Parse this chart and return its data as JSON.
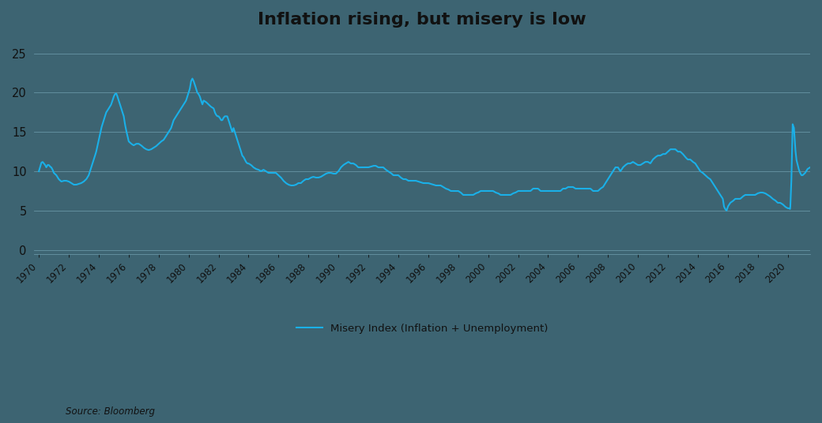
{
  "title": "Inflation rising, but misery is low",
  "line_color": "#1ab0e8",
  "background_color": "#3d6472",
  "grid_color": "#7aaabb",
  "text_color": "#111111",
  "source_text": "Source: Bloomberg",
  "legend_label": "Misery Index (Inflation + Unemployment)",
  "yticks": [
    0,
    5,
    10,
    15,
    20,
    25
  ],
  "ylim": [
    -0.5,
    27
  ],
  "xlim_left": 1969.7,
  "xlim_right": 2021.5,
  "points": [
    [
      1970.0,
      10.0
    ],
    [
      1970.08,
      10.5
    ],
    [
      1970.17,
      11.1
    ],
    [
      1970.25,
      11.2
    ],
    [
      1970.33,
      11.0
    ],
    [
      1970.42,
      10.8
    ],
    [
      1970.5,
      10.5
    ],
    [
      1970.58,
      10.8
    ],
    [
      1970.67,
      10.8
    ],
    [
      1970.75,
      10.6
    ],
    [
      1970.83,
      10.5
    ],
    [
      1970.92,
      10.2
    ],
    [
      1971.0,
      9.8
    ],
    [
      1971.17,
      9.5
    ],
    [
      1971.33,
      9.0
    ],
    [
      1971.5,
      8.7
    ],
    [
      1971.67,
      8.8
    ],
    [
      1971.83,
      8.8
    ],
    [
      1972.0,
      8.7
    ],
    [
      1972.17,
      8.5
    ],
    [
      1972.33,
      8.3
    ],
    [
      1972.5,
      8.3
    ],
    [
      1972.67,
      8.4
    ],
    [
      1972.83,
      8.5
    ],
    [
      1973.0,
      8.7
    ],
    [
      1973.17,
      9.0
    ],
    [
      1973.33,
      9.5
    ],
    [
      1973.5,
      10.5
    ],
    [
      1973.67,
      11.5
    ],
    [
      1973.83,
      12.5
    ],
    [
      1974.0,
      14.0
    ],
    [
      1974.17,
      15.5
    ],
    [
      1974.33,
      16.5
    ],
    [
      1974.5,
      17.5
    ],
    [
      1974.67,
      18.0
    ],
    [
      1974.83,
      18.5
    ],
    [
      1975.0,
      19.5
    ],
    [
      1975.08,
      19.8
    ],
    [
      1975.17,
      19.9
    ],
    [
      1975.25,
      19.5
    ],
    [
      1975.33,
      19.0
    ],
    [
      1975.42,
      18.5
    ],
    [
      1975.5,
      18.0
    ],
    [
      1975.58,
      17.5
    ],
    [
      1975.67,
      17.0
    ],
    [
      1975.75,
      16.0
    ],
    [
      1975.83,
      15.2
    ],
    [
      1975.92,
      14.5
    ],
    [
      1976.0,
      13.8
    ],
    [
      1976.17,
      13.5
    ],
    [
      1976.33,
      13.3
    ],
    [
      1976.5,
      13.5
    ],
    [
      1976.67,
      13.5
    ],
    [
      1976.83,
      13.3
    ],
    [
      1977.0,
      13.0
    ],
    [
      1977.17,
      12.8
    ],
    [
      1977.33,
      12.7
    ],
    [
      1977.5,
      12.8
    ],
    [
      1977.67,
      13.0
    ],
    [
      1977.83,
      13.2
    ],
    [
      1978.0,
      13.5
    ],
    [
      1978.17,
      13.8
    ],
    [
      1978.33,
      14.0
    ],
    [
      1978.5,
      14.5
    ],
    [
      1978.67,
      15.0
    ],
    [
      1978.83,
      15.5
    ],
    [
      1979.0,
      16.5
    ],
    [
      1979.17,
      17.0
    ],
    [
      1979.33,
      17.5
    ],
    [
      1979.5,
      18.0
    ],
    [
      1979.67,
      18.5
    ],
    [
      1979.83,
      19.0
    ],
    [
      1980.0,
      20.0
    ],
    [
      1980.08,
      20.5
    ],
    [
      1980.17,
      21.5
    ],
    [
      1980.25,
      21.8
    ],
    [
      1980.33,
      21.5
    ],
    [
      1980.42,
      21.0
    ],
    [
      1980.5,
      20.5
    ],
    [
      1980.58,
      20.0
    ],
    [
      1980.67,
      19.8
    ],
    [
      1980.75,
      19.5
    ],
    [
      1980.83,
      19.0
    ],
    [
      1980.92,
      18.5
    ],
    [
      1981.0,
      19.0
    ],
    [
      1981.17,
      18.8
    ],
    [
      1981.33,
      18.5
    ],
    [
      1981.5,
      18.2
    ],
    [
      1981.67,
      18.0
    ],
    [
      1981.75,
      17.5
    ],
    [
      1981.83,
      17.2
    ],
    [
      1981.92,
      17.0
    ],
    [
      1982.0,
      17.0
    ],
    [
      1982.08,
      16.8
    ],
    [
      1982.17,
      16.5
    ],
    [
      1982.25,
      16.5
    ],
    [
      1982.33,
      16.8
    ],
    [
      1982.42,
      17.0
    ],
    [
      1982.5,
      17.0
    ],
    [
      1982.58,
      17.0
    ],
    [
      1982.67,
      16.5
    ],
    [
      1982.75,
      16.0
    ],
    [
      1982.83,
      15.5
    ],
    [
      1982.92,
      15.0
    ],
    [
      1983.0,
      15.5
    ],
    [
      1983.08,
      15.0
    ],
    [
      1983.17,
      14.5
    ],
    [
      1983.25,
      14.0
    ],
    [
      1983.33,
      13.5
    ],
    [
      1983.42,
      13.0
    ],
    [
      1983.5,
      12.5
    ],
    [
      1983.58,
      12.0
    ],
    [
      1983.67,
      11.8
    ],
    [
      1983.75,
      11.5
    ],
    [
      1983.83,
      11.2
    ],
    [
      1983.92,
      11.0
    ],
    [
      1984.0,
      11.0
    ],
    [
      1984.17,
      10.8
    ],
    [
      1984.33,
      10.5
    ],
    [
      1984.5,
      10.3
    ],
    [
      1984.67,
      10.2
    ],
    [
      1984.83,
      10.0
    ],
    [
      1985.0,
      10.2
    ],
    [
      1985.17,
      10.0
    ],
    [
      1985.33,
      9.8
    ],
    [
      1985.5,
      9.8
    ],
    [
      1985.67,
      9.8
    ],
    [
      1985.83,
      9.8
    ],
    [
      1986.0,
      9.5
    ],
    [
      1986.17,
      9.2
    ],
    [
      1986.33,
      8.8
    ],
    [
      1986.5,
      8.5
    ],
    [
      1986.67,
      8.3
    ],
    [
      1986.83,
      8.2
    ],
    [
      1987.0,
      8.2
    ],
    [
      1987.17,
      8.3
    ],
    [
      1987.33,
      8.5
    ],
    [
      1987.5,
      8.5
    ],
    [
      1987.67,
      8.8
    ],
    [
      1987.83,
      9.0
    ],
    [
      1988.0,
      9.0
    ],
    [
      1988.17,
      9.2
    ],
    [
      1988.33,
      9.3
    ],
    [
      1988.5,
      9.2
    ],
    [
      1988.67,
      9.2
    ],
    [
      1988.83,
      9.3
    ],
    [
      1989.0,
      9.5
    ],
    [
      1989.17,
      9.7
    ],
    [
      1989.33,
      9.8
    ],
    [
      1989.5,
      9.8
    ],
    [
      1989.67,
      9.7
    ],
    [
      1989.83,
      9.7
    ],
    [
      1990.0,
      10.0
    ],
    [
      1990.17,
      10.5
    ],
    [
      1990.33,
      10.8
    ],
    [
      1990.5,
      11.0
    ],
    [
      1990.67,
      11.2
    ],
    [
      1990.83,
      11.0
    ],
    [
      1991.0,
      11.0
    ],
    [
      1991.17,
      10.8
    ],
    [
      1991.33,
      10.5
    ],
    [
      1991.5,
      10.5
    ],
    [
      1991.67,
      10.5
    ],
    [
      1991.83,
      10.5
    ],
    [
      1992.0,
      10.5
    ],
    [
      1992.17,
      10.6
    ],
    [
      1992.33,
      10.7
    ],
    [
      1992.5,
      10.7
    ],
    [
      1992.67,
      10.5
    ],
    [
      1992.83,
      10.5
    ],
    [
      1993.0,
      10.5
    ],
    [
      1993.17,
      10.2
    ],
    [
      1993.33,
      10.0
    ],
    [
      1993.5,
      9.8
    ],
    [
      1993.67,
      9.5
    ],
    [
      1993.83,
      9.5
    ],
    [
      1994.0,
      9.5
    ],
    [
      1994.17,
      9.2
    ],
    [
      1994.33,
      9.0
    ],
    [
      1994.5,
      9.0
    ],
    [
      1994.67,
      8.8
    ],
    [
      1994.83,
      8.8
    ],
    [
      1995.0,
      8.8
    ],
    [
      1995.17,
      8.8
    ],
    [
      1995.33,
      8.7
    ],
    [
      1995.5,
      8.6
    ],
    [
      1995.67,
      8.5
    ],
    [
      1995.83,
      8.5
    ],
    [
      1996.0,
      8.5
    ],
    [
      1996.17,
      8.4
    ],
    [
      1996.33,
      8.3
    ],
    [
      1996.5,
      8.2
    ],
    [
      1996.67,
      8.2
    ],
    [
      1996.83,
      8.2
    ],
    [
      1997.0,
      8.0
    ],
    [
      1997.17,
      7.8
    ],
    [
      1997.33,
      7.7
    ],
    [
      1997.5,
      7.5
    ],
    [
      1997.67,
      7.5
    ],
    [
      1997.83,
      7.5
    ],
    [
      1998.0,
      7.5
    ],
    [
      1998.17,
      7.3
    ],
    [
      1998.33,
      7.0
    ],
    [
      1998.5,
      7.0
    ],
    [
      1998.67,
      7.0
    ],
    [
      1998.83,
      7.0
    ],
    [
      1999.0,
      7.0
    ],
    [
      1999.17,
      7.2
    ],
    [
      1999.33,
      7.3
    ],
    [
      1999.5,
      7.5
    ],
    [
      1999.67,
      7.5
    ],
    [
      1999.83,
      7.5
    ],
    [
      2000.0,
      7.5
    ],
    [
      2000.17,
      7.5
    ],
    [
      2000.33,
      7.5
    ],
    [
      2000.5,
      7.3
    ],
    [
      2000.67,
      7.2
    ],
    [
      2000.83,
      7.0
    ],
    [
      2001.0,
      7.0
    ],
    [
      2001.17,
      7.0
    ],
    [
      2001.33,
      7.0
    ],
    [
      2001.5,
      7.0
    ],
    [
      2001.67,
      7.2
    ],
    [
      2001.83,
      7.3
    ],
    [
      2002.0,
      7.5
    ],
    [
      2002.17,
      7.5
    ],
    [
      2002.33,
      7.5
    ],
    [
      2002.5,
      7.5
    ],
    [
      2002.67,
      7.5
    ],
    [
      2002.83,
      7.5
    ],
    [
      2003.0,
      7.8
    ],
    [
      2003.17,
      7.8
    ],
    [
      2003.33,
      7.8
    ],
    [
      2003.5,
      7.5
    ],
    [
      2003.67,
      7.5
    ],
    [
      2003.83,
      7.5
    ],
    [
      2004.0,
      7.5
    ],
    [
      2004.17,
      7.5
    ],
    [
      2004.33,
      7.5
    ],
    [
      2004.5,
      7.5
    ],
    [
      2004.67,
      7.5
    ],
    [
      2004.83,
      7.5
    ],
    [
      2005.0,
      7.8
    ],
    [
      2005.17,
      7.8
    ],
    [
      2005.33,
      8.0
    ],
    [
      2005.5,
      8.0
    ],
    [
      2005.67,
      8.0
    ],
    [
      2005.83,
      7.8
    ],
    [
      2006.0,
      7.8
    ],
    [
      2006.17,
      7.8
    ],
    [
      2006.33,
      7.8
    ],
    [
      2006.5,
      7.8
    ],
    [
      2006.67,
      7.8
    ],
    [
      2006.83,
      7.8
    ],
    [
      2007.0,
      7.5
    ],
    [
      2007.17,
      7.5
    ],
    [
      2007.33,
      7.5
    ],
    [
      2007.5,
      7.8
    ],
    [
      2007.67,
      8.0
    ],
    [
      2007.83,
      8.5
    ],
    [
      2008.0,
      9.0
    ],
    [
      2008.17,
      9.5
    ],
    [
      2008.33,
      10.0
    ],
    [
      2008.5,
      10.5
    ],
    [
      2008.67,
      10.5
    ],
    [
      2008.83,
      10.0
    ],
    [
      2009.0,
      10.5
    ],
    [
      2009.17,
      10.8
    ],
    [
      2009.33,
      11.0
    ],
    [
      2009.5,
      11.0
    ],
    [
      2009.67,
      11.2
    ],
    [
      2009.83,
      11.0
    ],
    [
      2010.0,
      10.8
    ],
    [
      2010.17,
      10.8
    ],
    [
      2010.33,
      11.0
    ],
    [
      2010.5,
      11.2
    ],
    [
      2010.67,
      11.2
    ],
    [
      2010.83,
      11.0
    ],
    [
      2011.0,
      11.5
    ],
    [
      2011.17,
      11.8
    ],
    [
      2011.33,
      12.0
    ],
    [
      2011.5,
      12.0
    ],
    [
      2011.67,
      12.2
    ],
    [
      2011.83,
      12.2
    ],
    [
      2012.0,
      12.5
    ],
    [
      2012.17,
      12.8
    ],
    [
      2012.33,
      12.8
    ],
    [
      2012.5,
      12.8
    ],
    [
      2012.67,
      12.5
    ],
    [
      2012.83,
      12.5
    ],
    [
      2013.0,
      12.2
    ],
    [
      2013.17,
      11.8
    ],
    [
      2013.33,
      11.5
    ],
    [
      2013.5,
      11.5
    ],
    [
      2013.67,
      11.2
    ],
    [
      2013.83,
      11.0
    ],
    [
      2014.0,
      10.5
    ],
    [
      2014.17,
      10.0
    ],
    [
      2014.33,
      9.8
    ],
    [
      2014.5,
      9.5
    ],
    [
      2014.67,
      9.2
    ],
    [
      2014.83,
      9.0
    ],
    [
      2015.0,
      8.5
    ],
    [
      2015.17,
      8.0
    ],
    [
      2015.33,
      7.5
    ],
    [
      2015.5,
      7.0
    ],
    [
      2015.67,
      6.5
    ],
    [
      2015.75,
      5.5
    ],
    [
      2015.83,
      5.2
    ],
    [
      2015.92,
      5.0
    ],
    [
      2016.0,
      5.5
    ],
    [
      2016.17,
      6.0
    ],
    [
      2016.33,
      6.2
    ],
    [
      2016.5,
      6.5
    ],
    [
      2016.67,
      6.5
    ],
    [
      2016.83,
      6.5
    ],
    [
      2017.0,
      6.8
    ],
    [
      2017.17,
      7.0
    ],
    [
      2017.33,
      7.0
    ],
    [
      2017.5,
      7.0
    ],
    [
      2017.67,
      7.0
    ],
    [
      2017.83,
      7.0
    ],
    [
      2018.0,
      7.2
    ],
    [
      2018.17,
      7.3
    ],
    [
      2018.33,
      7.3
    ],
    [
      2018.5,
      7.2
    ],
    [
      2018.67,
      7.0
    ],
    [
      2018.83,
      6.8
    ],
    [
      2019.0,
      6.5
    ],
    [
      2019.17,
      6.3
    ],
    [
      2019.33,
      6.0
    ],
    [
      2019.5,
      6.0
    ],
    [
      2019.67,
      5.8
    ],
    [
      2019.83,
      5.5
    ],
    [
      2020.0,
      5.3
    ],
    [
      2020.08,
      5.3
    ],
    [
      2020.17,
      5.2
    ],
    [
      2020.25,
      9.0
    ],
    [
      2020.33,
      16.0
    ],
    [
      2020.42,
      15.5
    ],
    [
      2020.5,
      13.0
    ],
    [
      2020.58,
      11.5
    ],
    [
      2020.67,
      10.8
    ],
    [
      2020.75,
      10.2
    ],
    [
      2020.83,
      9.8
    ],
    [
      2020.92,
      9.5
    ],
    [
      2021.0,
      9.5
    ],
    [
      2021.17,
      9.8
    ],
    [
      2021.33,
      10.3
    ],
    [
      2021.5,
      10.5
    ]
  ]
}
